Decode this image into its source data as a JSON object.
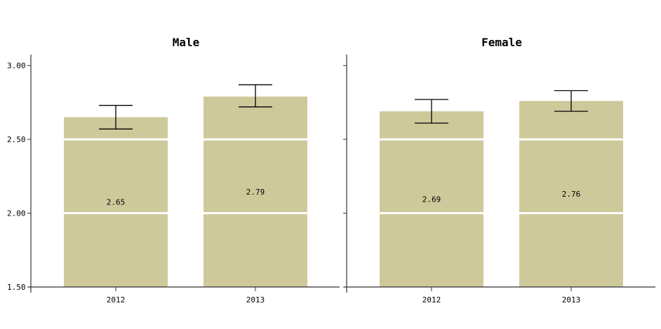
{
  "chart_data": {
    "type": "bar",
    "ylim": [
      1.5,
      3.15
    ],
    "y_ticks": [
      "1.50",
      "2.00",
      "2.50",
      "3.00"
    ],
    "y_tick_values": [
      1.5,
      2.0,
      2.5,
      3.0
    ],
    "gridlines": "white lines across bars at y tick values",
    "bar_color": "#cec99a",
    "error_bar_color": "#000000",
    "panels": [
      {
        "title": "Male",
        "categories": [
          "2012",
          "2013"
        ],
        "values": [
          2.65,
          2.79
        ],
        "value_labels": [
          "2.65",
          "2.79"
        ],
        "error_low": [
          2.57,
          2.72
        ],
        "error_high": [
          2.73,
          2.87
        ]
      },
      {
        "title": "Female",
        "categories": [
          "2012",
          "2013"
        ],
        "values": [
          2.69,
          2.76
        ],
        "value_labels": [
          "2.69",
          "2.76"
        ],
        "error_low": [
          2.61,
          2.69
        ],
        "error_high": [
          2.77,
          2.83
        ]
      }
    ]
  }
}
